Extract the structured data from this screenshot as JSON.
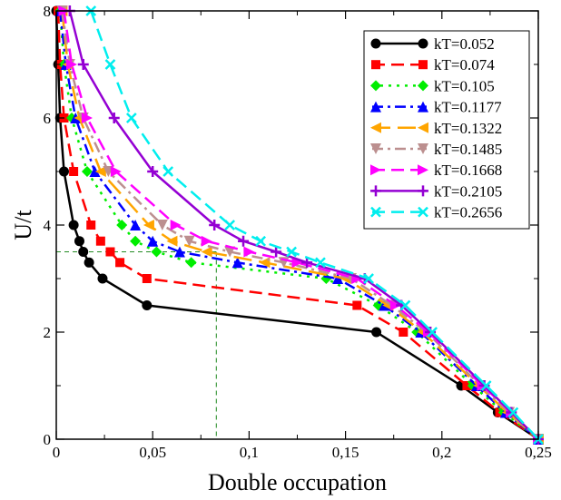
{
  "chart_data": {
    "type": "line",
    "title": "",
    "xlabel": "Double occupation",
    "ylabel": "U/t",
    "xlim": [
      0,
      0.25
    ],
    "ylim": [
      0,
      8
    ],
    "xticks": [
      {
        "value": 0,
        "label": "0"
      },
      {
        "value": 0.05,
        "label": "0,05"
      },
      {
        "value": 0.1,
        "label": "0,1"
      },
      {
        "value": 0.15,
        "label": "0,15"
      },
      {
        "value": 0.2,
        "label": "0,2"
      },
      {
        "value": 0.25,
        "label": "0,25"
      }
    ],
    "yticks": [
      {
        "value": 0,
        "label": "0"
      },
      {
        "value": 2,
        "label": "2"
      },
      {
        "value": 4,
        "label": "4"
      },
      {
        "value": 6,
        "label": "6"
      },
      {
        "value": 8,
        "label": "8"
      }
    ],
    "grid": false,
    "legend_position": "top-right",
    "reference_lines": {
      "x": 0.083,
      "y": 3.5,
      "color": "#228b22",
      "style": "dashed"
    },
    "series": [
      {
        "name": "kT=0.052",
        "color": "#000000",
        "dash": "solid",
        "marker": "circle",
        "points": [
          [
            0,
            8
          ],
          [
            0.001,
            7
          ],
          [
            0.002,
            6
          ],
          [
            0.004,
            5
          ],
          [
            0.009,
            4
          ],
          [
            0.012,
            3.7
          ],
          [
            0.014,
            3.5
          ],
          [
            0.017,
            3.3
          ],
          [
            0.024,
            3
          ],
          [
            0.047,
            2.5
          ],
          [
            0.166,
            2
          ],
          [
            0.21,
            1
          ],
          [
            0.229,
            0.5
          ],
          [
            0.25,
            0
          ]
        ]
      },
      {
        "name": "kT=0.074",
        "color": "#ff0000",
        "dash": "dashed",
        "marker": "square",
        "points": [
          [
            0.001,
            8
          ],
          [
            0.002,
            7
          ],
          [
            0.004,
            6
          ],
          [
            0.009,
            5
          ],
          [
            0.018,
            4
          ],
          [
            0.023,
            3.7
          ],
          [
            0.028,
            3.5
          ],
          [
            0.033,
            3.3
          ],
          [
            0.047,
            3
          ],
          [
            0.156,
            2.5
          ],
          [
            0.18,
            2
          ],
          [
            0.213,
            1
          ],
          [
            0.23,
            0.5
          ],
          [
            0.25,
            0
          ]
        ]
      },
      {
        "name": "kT=0.105",
        "color": "#00ee00",
        "dash": "dotted",
        "marker": "diamond",
        "points": [
          [
            0.002,
            8
          ],
          [
            0.004,
            7
          ],
          [
            0.008,
            6
          ],
          [
            0.016,
            5
          ],
          [
            0.034,
            4
          ],
          [
            0.041,
            3.7
          ],
          [
            0.052,
            3.5
          ],
          [
            0.07,
            3.3
          ],
          [
            0.14,
            3
          ],
          [
            0.167,
            2.5
          ],
          [
            0.187,
            2
          ],
          [
            0.216,
            1
          ],
          [
            0.232,
            0.5
          ],
          [
            0.25,
            0
          ]
        ]
      },
      {
        "name": "kT=0.1177",
        "color": "#0000ff",
        "dash": "dashdot",
        "marker": "triangle-up",
        "points": [
          [
            0.002,
            8
          ],
          [
            0.005,
            7
          ],
          [
            0.01,
            6
          ],
          [
            0.02,
            5
          ],
          [
            0.041,
            4
          ],
          [
            0.05,
            3.7
          ],
          [
            0.064,
            3.5
          ],
          [
            0.094,
            3.3
          ],
          [
            0.146,
            3
          ],
          [
            0.17,
            2.5
          ],
          [
            0.189,
            2
          ],
          [
            0.218,
            1
          ],
          [
            0.233,
            0.5
          ],
          [
            0.25,
            0
          ]
        ]
      },
      {
        "name": "kT=0.1322",
        "color": "#ffa500",
        "dash": "longdash",
        "marker": "triangle-left",
        "points": [
          [
            0.003,
            8
          ],
          [
            0.006,
            7
          ],
          [
            0.012,
            6
          ],
          [
            0.023,
            5
          ],
          [
            0.048,
            4
          ],
          [
            0.06,
            3.7
          ],
          [
            0.078,
            3.5
          ],
          [
            0.108,
            3.3
          ],
          [
            0.15,
            3
          ],
          [
            0.172,
            2.5
          ],
          [
            0.19,
            2
          ],
          [
            0.219,
            1
          ],
          [
            0.234,
            0.5
          ],
          [
            0.25,
            0
          ]
        ]
      },
      {
        "name": "kT=0.1485",
        "color": "#bc8f8f",
        "dash": "dashdot",
        "marker": "triangle-down",
        "points": [
          [
            0.003,
            8
          ],
          [
            0.007,
            7
          ],
          [
            0.014,
            6
          ],
          [
            0.027,
            5
          ],
          [
            0.055,
            4
          ],
          [
            0.069,
            3.7
          ],
          [
            0.09,
            3.5
          ],
          [
            0.118,
            3.3
          ],
          [
            0.153,
            3
          ],
          [
            0.174,
            2.5
          ],
          [
            0.192,
            2
          ],
          [
            0.22,
            1
          ],
          [
            0.235,
            0.5
          ],
          [
            0.25,
            0
          ]
        ]
      },
      {
        "name": "kT=0.1668",
        "color": "#ff00ff",
        "dash": "dashed",
        "marker": "triangle-right",
        "points": [
          [
            0.004,
            8
          ],
          [
            0.008,
            7
          ],
          [
            0.016,
            6
          ],
          [
            0.031,
            5
          ],
          [
            0.062,
            4
          ],
          [
            0.078,
            3.7
          ],
          [
            0.1,
            3.5
          ],
          [
            0.125,
            3.3
          ],
          [
            0.156,
            3
          ],
          [
            0.176,
            2.5
          ],
          [
            0.193,
            2
          ],
          [
            0.221,
            1
          ],
          [
            0.236,
            0.5
          ],
          [
            0.25,
            0
          ]
        ]
      },
      {
        "name": "kT=0.2105",
        "color": "#9400d3",
        "dash": "solid",
        "marker": "plus",
        "points": [
          [
            0.007,
            8
          ],
          [
            0.014,
            7
          ],
          [
            0.03,
            6
          ],
          [
            0.05,
            5
          ],
          [
            0.082,
            4
          ],
          [
            0.097,
            3.7
          ],
          [
            0.114,
            3.5
          ],
          [
            0.13,
            3.3
          ],
          [
            0.16,
            3
          ],
          [
            0.179,
            2.5
          ],
          [
            0.194,
            2
          ],
          [
            0.222,
            1
          ],
          [
            0.236,
            0.5
          ],
          [
            0.25,
            0
          ]
        ]
      },
      {
        "name": "kT=0.2656",
        "color": "#00eeee",
        "dash": "dashed",
        "marker": "cross",
        "points": [
          [
            0.018,
            8
          ],
          [
            0.028,
            7
          ],
          [
            0.039,
            6
          ],
          [
            0.058,
            5
          ],
          [
            0.09,
            4
          ],
          [
            0.106,
            3.7
          ],
          [
            0.122,
            3.5
          ],
          [
            0.137,
            3.3
          ],
          [
            0.162,
            3
          ],
          [
            0.181,
            2.5
          ],
          [
            0.195,
            2
          ],
          [
            0.223,
            1
          ],
          [
            0.237,
            0.5
          ],
          [
            0.25,
            0
          ]
        ]
      }
    ]
  }
}
